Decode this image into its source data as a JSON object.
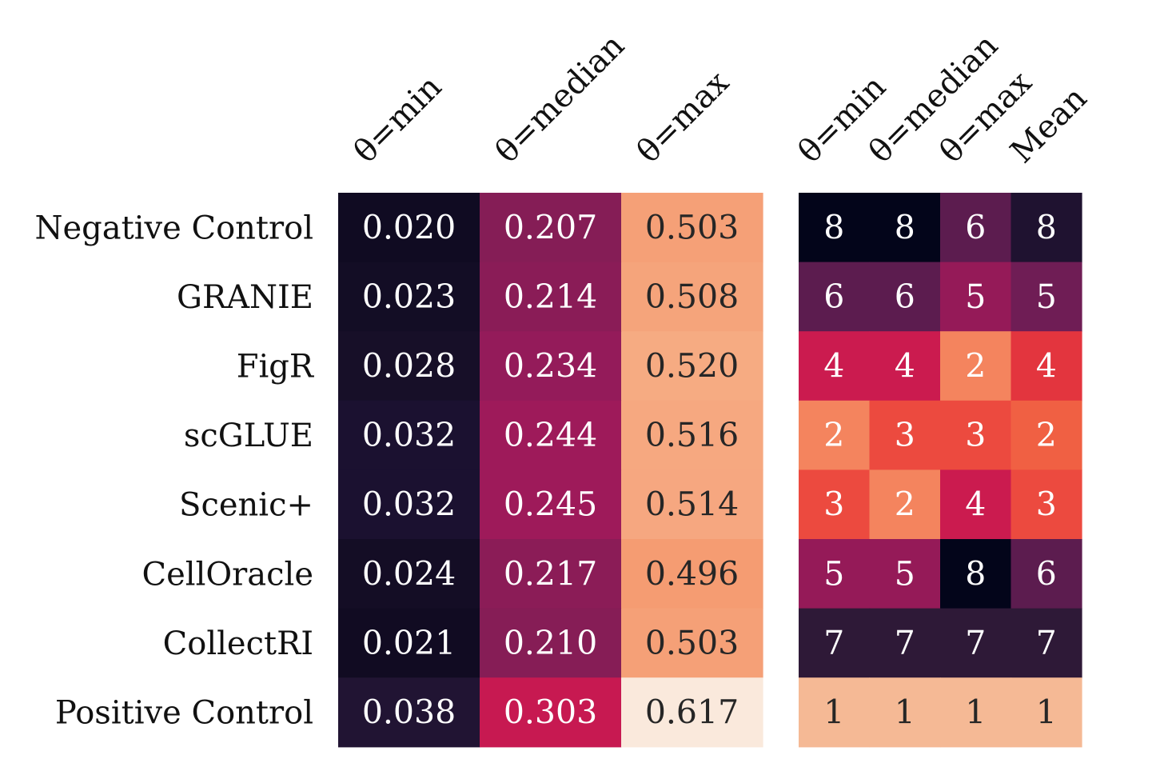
{
  "chart_data": [
    {
      "type": "heatmap",
      "rows": [
        "Negative Control",
        "GRANIE",
        "FigR",
        "scGLUE",
        "Scenic+",
        "CellOracle",
        "CollectRI",
        "Positive Control"
      ],
      "columns": [
        "θ=min",
        "θ=median",
        "θ=max"
      ],
      "values": [
        [
          0.02,
          0.207,
          0.503
        ],
        [
          0.023,
          0.214,
          0.508
        ],
        [
          0.028,
          0.234,
          0.52
        ],
        [
          0.032,
          0.244,
          0.516
        ],
        [
          0.032,
          0.245,
          0.514
        ],
        [
          0.024,
          0.217,
          0.496
        ],
        [
          0.021,
          0.21,
          0.503
        ],
        [
          0.038,
          0.303,
          0.617
        ]
      ],
      "labels": [
        [
          "0.020",
          "0.207",
          "0.503"
        ],
        [
          "0.023",
          "0.214",
          "0.508"
        ],
        [
          "0.028",
          "0.234",
          "0.520"
        ],
        [
          "0.032",
          "0.244",
          "0.516"
        ],
        [
          "0.032",
          "0.245",
          "0.514"
        ],
        [
          "0.024",
          "0.217",
          "0.496"
        ],
        [
          "0.021",
          "0.210",
          "0.503"
        ],
        [
          "0.038",
          "0.303",
          "0.617"
        ]
      ],
      "colors": [
        [
          "#100b22",
          "#851d56",
          "#f5a077"
        ],
        [
          "#130d25",
          "#8a1c57",
          "#f5a47b"
        ],
        [
          "#170f28",
          "#941b5a",
          "#f6ab82"
        ],
        [
          "#1b1130",
          "#9e1a5a",
          "#f6a880"
        ],
        [
          "#1b1130",
          "#9e1a5a",
          "#f6a780"
        ],
        [
          "#140d25",
          "#8b1c57",
          "#f59c72"
        ],
        [
          "#110b22",
          "#861d56",
          "#f5a077"
        ],
        [
          "#211433",
          "#c71951",
          "#fae9dc"
        ]
      ],
      "text_colors": [
        [
          "#ffffff",
          "#ffffff",
          "#262626"
        ],
        [
          "#ffffff",
          "#ffffff",
          "#262626"
        ],
        [
          "#ffffff",
          "#ffffff",
          "#262626"
        ],
        [
          "#ffffff",
          "#ffffff",
          "#262626"
        ],
        [
          "#ffffff",
          "#ffffff",
          "#262626"
        ],
        [
          "#ffffff",
          "#ffffff",
          "#262626"
        ],
        [
          "#ffffff",
          "#ffffff",
          "#262626"
        ],
        [
          "#ffffff",
          "#ffffff",
          "#262626"
        ]
      ],
      "colormap": "rocket"
    },
    {
      "type": "heatmap",
      "rows": [
        "Negative Control",
        "GRANIE",
        "FigR",
        "scGLUE",
        "Scenic+",
        "CellOracle",
        "CollectRI",
        "Positive Control"
      ],
      "columns": [
        "θ=min",
        "θ=median",
        "θ=max",
        "Mean"
      ],
      "values": [
        [
          8,
          8,
          6,
          8
        ],
        [
          6,
          6,
          5,
          5
        ],
        [
          4,
          4,
          2,
          4
        ],
        [
          2,
          3,
          3,
          2
        ],
        [
          3,
          2,
          4,
          3
        ],
        [
          5,
          5,
          8,
          6
        ],
        [
          7,
          7,
          7,
          7
        ],
        [
          1,
          1,
          1,
          1
        ]
      ],
      "labels": [
        [
          "8",
          "8",
          "6",
          "8"
        ],
        [
          "6",
          "6",
          "5",
          "5"
        ],
        [
          "4",
          "4",
          "2",
          "4"
        ],
        [
          "2",
          "3",
          "3",
          "2"
        ],
        [
          "3",
          "2",
          "4",
          "3"
        ],
        [
          "5",
          "5",
          "8",
          "6"
        ],
        [
          "7",
          "7",
          "7",
          "7"
        ],
        [
          "1",
          "1",
          "1",
          "1"
        ]
      ],
      "colors": [
        [
          "#03051a",
          "#03051a",
          "#5c1c4f",
          "#1f1230"
        ],
        [
          "#5c1c4f",
          "#5c1c4f",
          "#951a58",
          "#6f1d55"
        ],
        [
          "#cb1b4f",
          "#cb1b4f",
          "#f4845e",
          "#e3353e"
        ],
        [
          "#f4845e",
          "#ec4a3f",
          "#ec4a3f",
          "#f06043"
        ],
        [
          "#ec4a3f",
          "#f4845e",
          "#cb1b4f",
          "#ec4a3f"
        ],
        [
          "#951a58",
          "#951a58",
          "#03051a",
          "#5c1c4f"
        ],
        [
          "#2e1937",
          "#2e1937",
          "#2e1937",
          "#2e1937"
        ],
        [
          "#f5b995",
          "#f5b995",
          "#f5b995",
          "#f5b995"
        ]
      ],
      "text_colors": [
        [
          "#ffffff",
          "#ffffff",
          "#ffffff",
          "#ffffff"
        ],
        [
          "#ffffff",
          "#ffffff",
          "#ffffff",
          "#ffffff"
        ],
        [
          "#ffffff",
          "#ffffff",
          "#ffffff",
          "#ffffff"
        ],
        [
          "#ffffff",
          "#ffffff",
          "#ffffff",
          "#ffffff"
        ],
        [
          "#ffffff",
          "#ffffff",
          "#ffffff",
          "#ffffff"
        ],
        [
          "#ffffff",
          "#ffffff",
          "#ffffff",
          "#ffffff"
        ],
        [
          "#ffffff",
          "#ffffff",
          "#ffffff",
          "#ffffff"
        ],
        [
          "#262626",
          "#262626",
          "#262626",
          "#262626"
        ]
      ],
      "colormap": "rocket"
    }
  ]
}
